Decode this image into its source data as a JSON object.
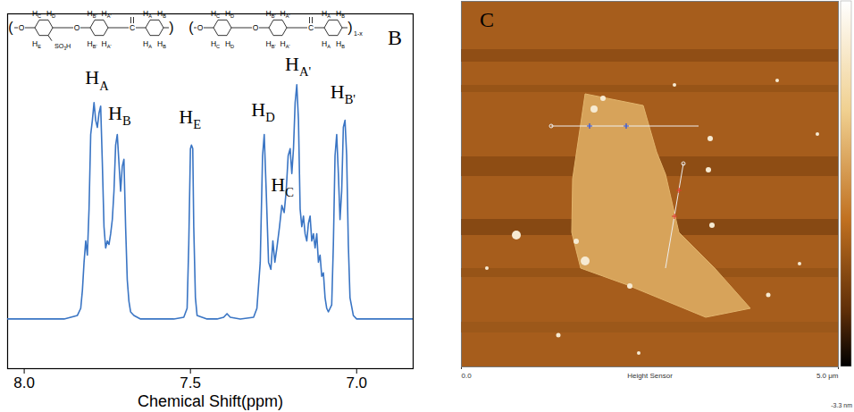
{
  "chart_data": [
    {
      "type": "line",
      "panel_label": "B",
      "x_label": "Chemical Shift(ppm)",
      "xlim": [
        8.05,
        6.83
      ],
      "xticks": [
        {
          "value": 8,
          "label": "8.0"
        },
        {
          "value": 7.5,
          "label": "7.5"
        },
        {
          "value": 7,
          "label": "7.0"
        }
      ],
      "ylim": [
        0,
        100
      ],
      "tick_labels": "x",
      "grid": false,
      "color": "#3a75c4",
      "x": [
        8.05,
        7.95,
        7.88,
        7.84,
        7.83,
        7.825,
        7.82,
        7.815,
        7.81,
        7.805,
        7.8,
        7.795,
        7.79,
        7.785,
        7.78,
        7.775,
        7.77,
        7.765,
        7.76,
        7.755,
        7.75,
        7.745,
        7.74,
        7.735,
        7.73,
        7.725,
        7.72,
        7.715,
        7.71,
        7.705,
        7.7,
        7.695,
        7.69,
        7.685,
        7.68,
        7.67,
        7.65,
        7.6,
        7.55,
        7.52,
        7.51,
        7.505,
        7.5,
        7.497,
        7.493,
        7.49,
        7.485,
        7.48,
        7.45,
        7.42,
        7.4,
        7.39,
        7.38,
        7.35,
        7.31,
        7.3,
        7.29,
        7.283,
        7.278,
        7.272,
        7.265,
        7.258,
        7.252,
        7.246,
        7.24,
        7.232,
        7.225,
        7.218,
        7.212,
        7.206,
        7.2,
        7.195,
        7.19,
        7.185,
        7.18,
        7.175,
        7.17,
        7.165,
        7.16,
        7.155,
        7.15,
        7.145,
        7.14,
        7.135,
        7.13,
        7.125,
        7.12,
        7.115,
        7.11,
        7.105,
        7.1,
        7.095,
        7.09,
        7.085,
        7.075,
        7.07,
        7.065,
        7.06,
        7.055,
        7.05,
        7.045,
        7.04,
        7.035,
        7.03,
        7.025,
        7.02,
        7.01,
        7.0,
        6.95,
        6.9,
        6.83
      ],
      "values": [
        14,
        14,
        14,
        15,
        17,
        22,
        30,
        36,
        32,
        45,
        66,
        70,
        75,
        70,
        68,
        72,
        74,
        58,
        40,
        34,
        36,
        35,
        38,
        42,
        50,
        63,
        66,
        58,
        50,
        57,
        59,
        40,
        25,
        19,
        16,
        15,
        14,
        14,
        14,
        14.5,
        17,
        35,
        62,
        63,
        62,
        40,
        20,
        15,
        14,
        14,
        14.5,
        15.5,
        14.5,
        14,
        14.5,
        17,
        30,
        60,
        66,
        50,
        30,
        28,
        36,
        30,
        34,
        40,
        46,
        44,
        50,
        60,
        62,
        55,
        62,
        75,
        80,
        70,
        45,
        40,
        43,
        38,
        36,
        41,
        43,
        36,
        38,
        34,
        38,
        30,
        32,
        26,
        27,
        20,
        17,
        16,
        18,
        35,
        60,
        66,
        55,
        42,
        50,
        68,
        70,
        60,
        35,
        20,
        15,
        14,
        14,
        14,
        14
      ],
      "annotations": [
        {
          "text": "HA",
          "x": 7.78,
          "y": 80
        },
        {
          "text": "HB",
          "x": 7.712,
          "y": 70
        },
        {
          "text": "HE",
          "x": 7.5,
          "y": 69
        },
        {
          "text": "HD",
          "x": 7.28,
          "y": 71
        },
        {
          "text": "HC",
          "x": 7.222,
          "y": 50
        },
        {
          "text": "HA'",
          "x": 7.175,
          "y": 84
        },
        {
          "text": "HB'",
          "x": 7.04,
          "y": 76
        }
      ],
      "structure": {
        "units": [
          {
            "link": "O",
            "top": [
              "HC",
              "HD"
            ],
            "bottom": [
              "HE",
              "SO3H"
            ]
          },
          {
            "link": "O",
            "top": [
              "HB'",
              "HA'"
            ],
            "bottom": [
              "HB'",
              "HA'"
            ]
          },
          {
            "link": "C",
            "top": [
              "HA",
              "HB"
            ],
            "bottom": [
              "HA",
              "HB"
            ]
          },
          {
            "link": "O",
            "top": [
              "HC",
              "HD"
            ],
            "bottom": [
              "HC",
              "HD"
            ]
          },
          {
            "link": "O",
            "top": [
              "HB'",
              "HA'"
            ],
            "bottom": [
              "HB'",
              "HA'"
            ]
          },
          {
            "link": "C",
            "top": [
              "HA",
              "HB"
            ],
            "bottom": [
              "HA",
              "HB"
            ]
          }
        ],
        "repeat": "1-x"
      }
    },
    {
      "type": "image",
      "panel_label": "C",
      "x_label": "Height Sensor",
      "xlim": [
        0,
        5
      ],
      "xticks": [
        {
          "value": 0,
          "label": "0.0"
        },
        {
          "value": 5,
          "label": "5.0 μm"
        }
      ],
      "colorbar": {
        "ticks": [
          {
            "value": -3.3,
            "label": "-3.3 nm"
          }
        ]
      }
    }
  ]
}
